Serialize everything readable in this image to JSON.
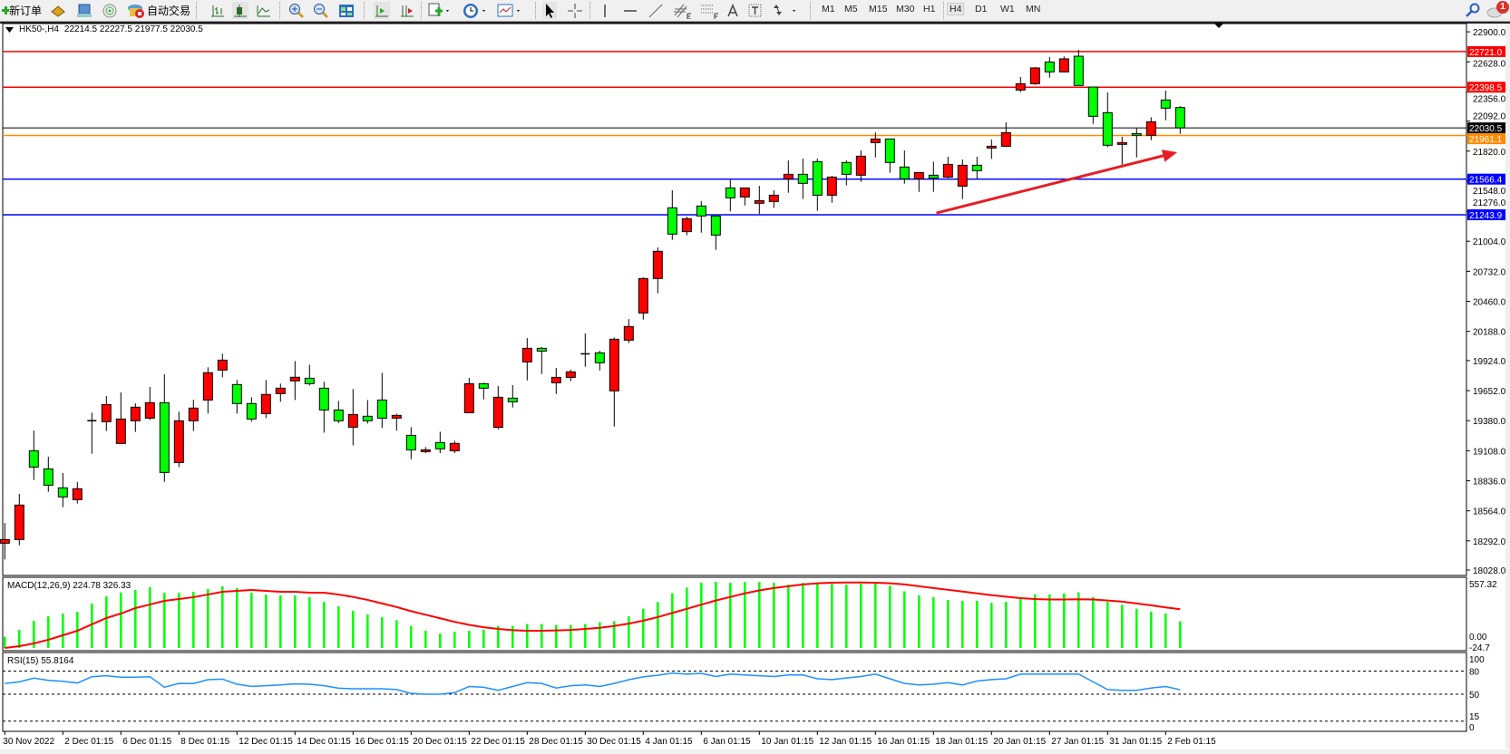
{
  "toolbar": {
    "new_order_label": "新订单",
    "auto_trading_label": "自动交易",
    "timeframes": [
      "M1",
      "M5",
      "M15",
      "M30",
      "H1",
      "H4",
      "D1",
      "W1",
      "MN"
    ],
    "active_timeframe": "H4",
    "notification_count": "1",
    "icons": [
      "new-order-icon",
      "gold-bars-icon",
      "market-watch-icon",
      "signals-icon",
      "auto-trading-icon",
      "bar-chart-icon",
      "candlestick-icon",
      "line-chart-icon",
      "zoom-in-icon",
      "zoom-out-icon",
      "tile-windows-icon",
      "auto-scroll-icon",
      "chart-shift-icon",
      "new-chart-icon",
      "periods-clock-icon",
      "templates-icon",
      "cursor-icon",
      "crosshair-icon",
      "vertical-line-icon",
      "horizontal-line-icon",
      "trendline-icon",
      "equidistant-channel-icon",
      "fibonacci-icon",
      "text-icon",
      "text-label-icon",
      "arrows-icon",
      "search-icon",
      "notification-icon"
    ]
  },
  "chart": {
    "symbol_label": "HK50-,H4",
    "ohlc_label": "22214.5 22227.5 21977.5 22030.5"
  },
  "chart_data": {
    "type": "candlestick",
    "bull_color": "#ff0000",
    "bear_color": "#00ff00",
    "ylim": [
      18028,
      22900
    ],
    "price_ticks": [
      "22900.0",
      "22628.0",
      "22356.0",
      "22092.0",
      "21820.0",
      "21548.0",
      "21276.0",
      "21004.0",
      "20732.0",
      "20460.0",
      "20188.0",
      "19924.0",
      "19652.0",
      "19380.0",
      "19108.0",
      "18836.0",
      "18564.0",
      "18292.0",
      "18028.0"
    ],
    "candles": [
      [
        18271,
        18454,
        18124,
        18304
      ],
      [
        18304,
        18717,
        18252,
        18616
      ],
      [
        19108,
        19291,
        18843,
        18960
      ],
      [
        18944,
        19053,
        18736,
        18796
      ],
      [
        18772,
        18906,
        18597,
        18690
      ],
      [
        18665,
        18824,
        18630,
        18764
      ],
      [
        19379,
        19453,
        19081,
        19380
      ],
      [
        19371,
        19603,
        19286,
        19526
      ],
      [
        19174,
        19636,
        19174,
        19395
      ],
      [
        19379,
        19537,
        19278,
        19502
      ],
      [
        19403,
        19685,
        19387,
        19543
      ],
      [
        19543,
        19800,
        18826,
        18911
      ],
      [
        19001,
        19461,
        18960,
        19379
      ],
      [
        19379,
        19570,
        19286,
        19494
      ],
      [
        19567,
        19863,
        19444,
        19814
      ],
      [
        19838,
        19986,
        19773,
        19928
      ],
      [
        19707,
        19748,
        19444,
        19535
      ],
      [
        19535,
        19592,
        19371,
        19395
      ],
      [
        19444,
        19748,
        19403,
        19617
      ],
      [
        19625,
        19715,
        19551,
        19674
      ],
      [
        19740,
        19920,
        19567,
        19773
      ],
      [
        19764,
        19887,
        19699,
        19715
      ],
      [
        19674,
        19732,
        19272,
        19477
      ],
      [
        19477,
        19559,
        19359,
        19379
      ],
      [
        19321,
        19666,
        19157,
        19436
      ],
      [
        19420,
        19567,
        19354,
        19379
      ],
      [
        19567,
        19814,
        19313,
        19403
      ],
      [
        19403,
        19444,
        19289,
        19428
      ],
      [
        19247,
        19321,
        19031,
        19116
      ],
      [
        19100,
        19141,
        19086,
        19116
      ],
      [
        19182,
        19280,
        19086,
        19125
      ],
      [
        19108,
        19198,
        19086,
        19174
      ],
      [
        19452,
        19767,
        19452,
        19715
      ],
      [
        19715,
        19723,
        19573,
        19674
      ],
      [
        19319,
        19693,
        19302,
        19592
      ],
      [
        19584,
        19701,
        19499,
        19551
      ],
      [
        19912,
        20128,
        19745,
        20035
      ],
      [
        20035,
        20046,
        19803,
        20010
      ],
      [
        19723,
        19857,
        19622,
        19772
      ],
      [
        19772,
        19841,
        19737,
        19822
      ],
      [
        19983,
        20169,
        19868,
        19985
      ],
      [
        19994,
        20013,
        19835,
        19904
      ],
      [
        19650,
        20133,
        19327,
        20117
      ],
      [
        20109,
        20300,
        20082,
        20232
      ],
      [
        20355,
        20678,
        20295,
        20667
      ],
      [
        20667,
        20948,
        20533,
        20913
      ],
      [
        21307,
        21465,
        21017,
        21069
      ],
      [
        21091,
        21227,
        21058,
        21208
      ],
      [
        21323,
        21367,
        21082,
        21233
      ],
      [
        21233,
        21233,
        20926,
        21060
      ],
      [
        21487,
        21561,
        21274,
        21397
      ],
      [
        21405,
        21487,
        21328,
        21487
      ],
      [
        21348,
        21506,
        21252,
        21372
      ],
      [
        21364,
        21465,
        21307,
        21421
      ],
      [
        21569,
        21736,
        21443,
        21610
      ],
      [
        21610,
        21752,
        21386,
        21528
      ],
      [
        21725,
        21752,
        21279,
        21421
      ],
      [
        21421,
        21596,
        21353,
        21585
      ],
      [
        21717,
        21736,
        21509,
        21610
      ],
      [
        21602,
        21826,
        21542,
        21774
      ],
      [
        21897,
        21990,
        21763,
        21930
      ],
      [
        21930,
        21930,
        21624,
        21717
      ],
      [
        21676,
        21826,
        21525,
        21569
      ],
      [
        21569,
        21626,
        21451,
        21626
      ],
      [
        21602,
        21725,
        21451,
        21575
      ],
      [
        21585,
        21769,
        21575,
        21700
      ],
      [
        21503,
        21744,
        21386,
        21692
      ],
      [
        21692,
        21769,
        21569,
        21643
      ],
      [
        21848,
        21925,
        21750,
        21864
      ],
      [
        21864,
        22080,
        21856,
        21987
      ],
      [
        22373,
        22491,
        22354,
        22430
      ],
      [
        22430,
        22581,
        22420,
        22573
      ],
      [
        22627,
        22671,
        22485,
        22537
      ],
      [
        22537,
        22677,
        22537,
        22655
      ],
      [
        22679,
        22737,
        22414,
        22414
      ],
      [
        22400,
        22400,
        22067,
        22135
      ],
      [
        22168,
        22351,
        21854,
        21873
      ],
      [
        21881,
        21949,
        21698,
        21897
      ],
      [
        21979,
        22031,
        21763,
        21963
      ],
      [
        21963,
        22127,
        21919,
        22086
      ],
      [
        22283,
        22368,
        22100,
        22209
      ],
      [
        22214.5,
        22227.5,
        21977.5,
        22030.5
      ]
    ],
    "time_labels": [
      {
        "label": "30 Nov 2022",
        "index": 0
      },
      {
        "label": "2 Dec 01:15",
        "index": 4
      },
      {
        "label": "6 Dec 01:15",
        "index": 8
      },
      {
        "label": "8 Dec 01:15",
        "index": 12
      },
      {
        "label": "12 Dec 01:15",
        "index": 16
      },
      {
        "label": "14 Dec 01:15",
        "index": 20
      },
      {
        "label": "16 Dec 01:15",
        "index": 24
      },
      {
        "label": "20 Dec 01:15",
        "index": 28
      },
      {
        "label": "22 Dec 01:15",
        "index": 32
      },
      {
        "label": "28 Dec 01:15",
        "index": 36
      },
      {
        "label": "30 Dec 01:15",
        "index": 40
      },
      {
        "label": "4 Jan 01:15",
        "index": 44
      },
      {
        "label": "6 Jan 01:15",
        "index": 48
      },
      {
        "label": "10 Jan 01:15",
        "index": 52
      },
      {
        "label": "12 Jan 01:15",
        "index": 56
      },
      {
        "label": "16 Jan 01:15",
        "index": 60
      },
      {
        "label": "18 Jan 01:15",
        "index": 64
      },
      {
        "label": "20 Jan 01:15",
        "index": 68
      },
      {
        "label": "27 Jan 01:15",
        "index": 72
      },
      {
        "label": "31 Jan 01:15",
        "index": 76
      },
      {
        "label": "2 Feb 01:15",
        "index": 80
      }
    ],
    "hlines": [
      {
        "price": 22721.0,
        "label": "22721.0",
        "color": "#ff0000",
        "text_color": "#ffffff"
      },
      {
        "price": 22398.5,
        "label": "22398.5",
        "color": "#ff0000",
        "text_color": "#ffffff"
      },
      {
        "price": 22030.5,
        "label": "22030.5",
        "color": "#000000",
        "text_color": "#ffffff"
      },
      {
        "price": 21961.1,
        "label": "21961.1",
        "color": "#ff8c00",
        "text_color": "#ffffff"
      },
      {
        "price": 21566.4,
        "label": "21566.4",
        "color": "#0000ff",
        "text_color": "#ffffff"
      },
      {
        "price": 21243.9,
        "label": "21243.9",
        "color": "#0000ff",
        "text_color": "#ffffff"
      }
    ],
    "arrow": {
      "from": [
        64.2,
        21260
      ],
      "to": [
        80.8,
        21810
      ],
      "color": "#e81c24"
    }
  },
  "macd": {
    "label": "MACD(12,26,9) 224.78 326.33",
    "axis_labels": {
      "max": "557.32",
      "zero": "0.00",
      "min": "-24.7"
    },
    "range": [
      -24.7,
      557.32
    ],
    "hist_color": "#00ff00",
    "signal_color": "#ff0000",
    "histogram": [
      94,
      153,
      229,
      267,
      290,
      305,
      374,
      435,
      466,
      489,
      512,
      466,
      466,
      473,
      496,
      519,
      504,
      466,
      450,
      443,
      443,
      428,
      389,
      351,
      313,
      282,
      259,
      234,
      186,
      145,
      121,
      137,
      145,
      154,
      186,
      186,
      202,
      202,
      194,
      194,
      202,
      218,
      226,
      267,
      331,
      388,
      461,
      509,
      549,
      557,
      549,
      555,
      555,
      549,
      533,
      549,
      541,
      541,
      533,
      541,
      541,
      525,
      477,
      444,
      428,
      404,
      396,
      396,
      380,
      388,
      412,
      452,
      452,
      461,
      469,
      428,
      388,
      364,
      331,
      307,
      291,
      224.78
    ],
    "signal": [
      0,
      15,
      38,
      69,
      107,
      145,
      199,
      252,
      290,
      336,
      366,
      397,
      412,
      428,
      450,
      473,
      481,
      489,
      481,
      473,
      473,
      466,
      466,
      450,
      430,
      405,
      375,
      345,
      310,
      280,
      250,
      220,
      195,
      175,
      160,
      150,
      145,
      145,
      148,
      152,
      160,
      170,
      185,
      205,
      230,
      260,
      295,
      330,
      365,
      400,
      430,
      460,
      485,
      505,
      520,
      535,
      545,
      550,
      552,
      552,
      550,
      545,
      535,
      520,
      505,
      490,
      475,
      460,
      445,
      432,
      420,
      412,
      408,
      408,
      410,
      408,
      400,
      390,
      375,
      360,
      342,
      326.33
    ]
  },
  "rsi": {
    "label": "RSI(15) 55.8164",
    "levels": [
      "100",
      "80",
      "50",
      "15",
      "0"
    ],
    "dashed_levels": [
      80,
      50,
      15
    ],
    "color": "#1e90ff",
    "values": [
      63.8,
      66,
      70.8,
      68,
      66.8,
      64.5,
      72.7,
      73.9,
      72,
      72,
      72.7,
      59,
      64,
      63.8,
      68.8,
      69.6,
      62.9,
      60.2,
      61,
      62,
      63.4,
      63,
      61,
      57.8,
      57,
      57,
      57,
      56,
      51,
      50,
      50,
      52,
      60,
      59,
      55,
      60,
      65,
      64,
      58,
      61,
      62,
      60,
      64,
      68.8,
      72.5,
      74.5,
      77.4,
      76,
      77,
      73,
      76,
      75,
      74,
      73,
      75,
      75,
      70,
      69,
      71,
      73,
      76,
      70,
      64,
      62,
      63,
      65,
      62,
      67,
      69,
      70,
      76,
      76,
      76,
      76,
      76,
      66,
      56,
      55,
      55,
      58,
      60,
      55.8164
    ]
  }
}
